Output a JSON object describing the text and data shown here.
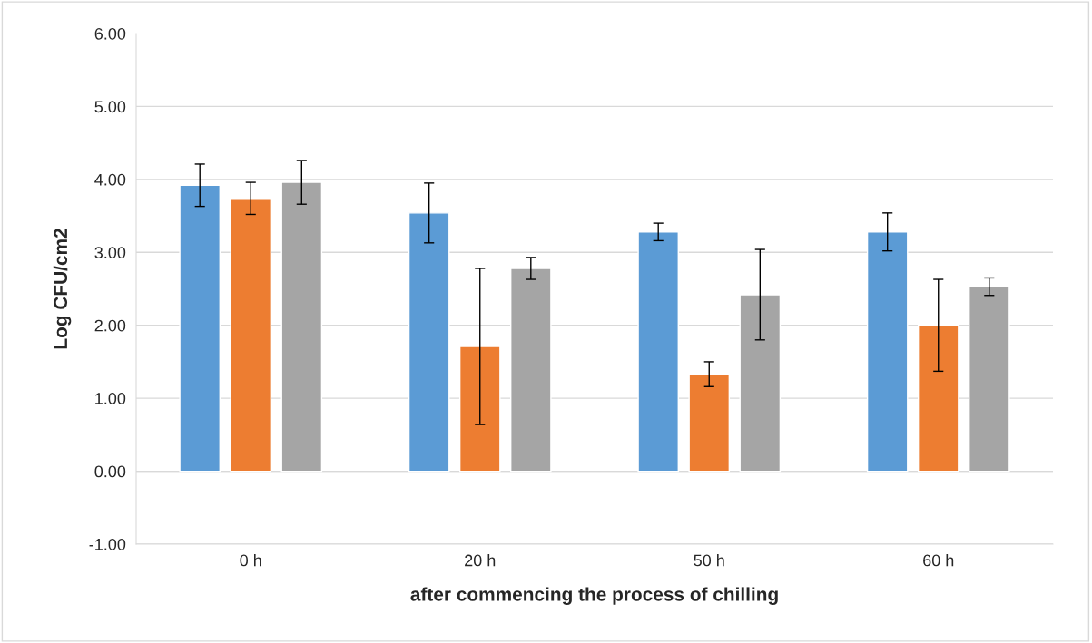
{
  "chart_data": {
    "type": "bar",
    "xlabel": "after commencing the process of chilling",
    "ylabel": "Log CFU/cm2",
    "categories": [
      "0 h",
      "20 h",
      "50 h",
      "60 h"
    ],
    "series": [
      {
        "color": "#5b9bd5",
        "values": [
          3.92,
          3.54,
          3.28,
          3.28
        ],
        "errors": [
          0.29,
          0.41,
          0.12,
          0.26
        ]
      },
      {
        "color": "#ed7d31",
        "values": [
          3.74,
          1.71,
          1.33,
          2.0
        ],
        "errors": [
          0.22,
          1.07,
          0.17,
          0.63
        ]
      },
      {
        "color": "#a5a5a5",
        "values": [
          3.96,
          2.78,
          2.42,
          2.53
        ],
        "errors": [
          0.3,
          0.15,
          0.62,
          0.12
        ]
      }
    ],
    "ylim": [
      -1,
      6
    ],
    "yticks": [
      {
        "value": -1,
        "label": "-1.00"
      },
      {
        "value": 0,
        "label": "0.00"
      },
      {
        "value": 1,
        "label": "1.00"
      },
      {
        "value": 2,
        "label": "2.00"
      },
      {
        "value": 3,
        "label": "3.00"
      },
      {
        "value": 4,
        "label": "4.00"
      },
      {
        "value": 5,
        "label": "5.00"
      },
      {
        "value": 6,
        "label": "6.00"
      }
    ],
    "grid": "y",
    "legend": false
  }
}
